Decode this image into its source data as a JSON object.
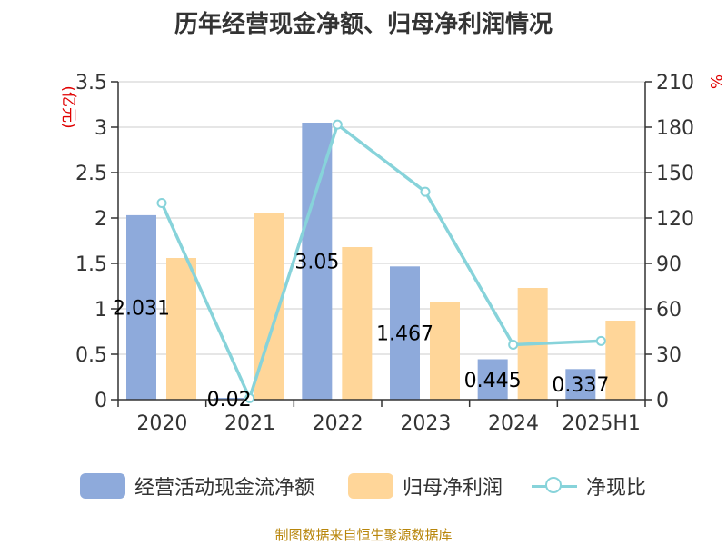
{
  "title": "历年经营现金净额、归母净利润情况",
  "source": "制图数据来自恒生聚源数据库",
  "colors": {
    "cash_bar": "#8eaadb",
    "profit_bar": "#ffd699",
    "ratio_line": "#87d3da",
    "axis_label_red": "#e00000",
    "grid": "#cccccc",
    "axis": "#333333",
    "text": "#333333"
  },
  "legend": [
    {
      "label": "经营活动现金流净额",
      "kind": "bar",
      "color": "#8eaadb"
    },
    {
      "label": "归母净利润",
      "kind": "bar",
      "color": "#ffd699"
    },
    {
      "label": "净现比",
      "kind": "line",
      "color": "#87d3da"
    }
  ],
  "chart_data": {
    "type": "bar",
    "title": "历年经营现金净额、归母净利润情况",
    "categories": [
      "2020",
      "2021",
      "2022",
      "2023",
      "2024",
      "2025H1"
    ],
    "ylabel_left": "(亿元)",
    "ylabel_right": "%",
    "ylim_left": [
      0,
      3.5
    ],
    "ylim_right": [
      0,
      210
    ],
    "yticks_left": [
      "0",
      "0.5",
      "1",
      "1.5",
      "2",
      "2.5",
      "3",
      "3.5"
    ],
    "yticks_right": [
      "0",
      "30",
      "60",
      "90",
      "120",
      "150",
      "180",
      "210"
    ],
    "grid": true,
    "legend_position": "bottom",
    "series": [
      {
        "name": "经营活动现金流净额",
        "type": "bar",
        "axis": "left",
        "values": [
          2.031,
          0.02,
          3.05,
          1.467,
          0.445,
          0.337
        ],
        "labels": [
          "2.031",
          "0.02",
          "3.05",
          "1.467",
          "0.445",
          "0.337"
        ]
      },
      {
        "name": "归母净利润",
        "type": "bar",
        "axis": "left",
        "values": [
          1.56,
          2.05,
          1.68,
          1.07,
          1.23,
          0.87
        ]
      },
      {
        "name": "净现比",
        "type": "line",
        "axis": "right",
        "values": [
          129.9,
          1.0,
          181.7,
          137.3,
          36.3,
          38.8
        ]
      }
    ]
  }
}
